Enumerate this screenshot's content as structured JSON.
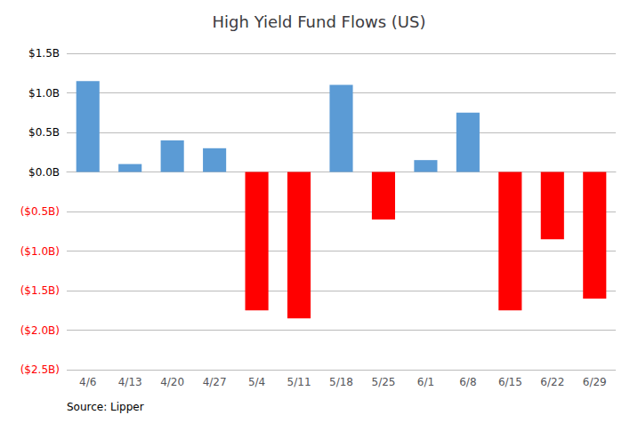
{
  "chart_data": {
    "type": "bar",
    "title": "High Yield Fund Flows (US)",
    "source": "Source: Lipper",
    "categories": [
      "4/6",
      "4/13",
      "4/20",
      "4/27",
      "5/4",
      "5/11",
      "5/18",
      "5/25",
      "6/1",
      "6/8",
      "6/15",
      "6/22",
      "6/29"
    ],
    "values": [
      1.15,
      0.1,
      0.4,
      0.3,
      -1.75,
      -1.85,
      1.1,
      -0.6,
      0.15,
      0.75,
      -1.75,
      -0.85,
      -1.6
    ],
    "colors": [
      "#5B9BD5",
      "#5B9BD5",
      "#5B9BD5",
      "#5B9BD5",
      "#FF0000",
      "#FF0000",
      "#5B9BD5",
      "#FF0000",
      "#5B9BD5",
      "#5B9BD5",
      "#FF0000",
      "#FF0000",
      "#FF0000"
    ],
    "ylim": [
      -2.5,
      1.5
    ],
    "yticks": [
      {
        "value": -2.5,
        "label": "($2.5B)"
      },
      {
        "value": -2.0,
        "label": "($2.0B)"
      },
      {
        "value": -1.5,
        "label": "($1.5B)"
      },
      {
        "value": -1.0,
        "label": "($1.0B)"
      },
      {
        "value": -0.5,
        "label": "($0.5B)"
      },
      {
        "value": 0.0,
        "label": "$0.0B"
      },
      {
        "value": 0.5,
        "label": "$0.5B"
      },
      {
        "value": 1.0,
        "label": "$1.0B"
      },
      {
        "value": 1.5,
        "label": "$1.5B"
      }
    ],
    "grid": true
  }
}
